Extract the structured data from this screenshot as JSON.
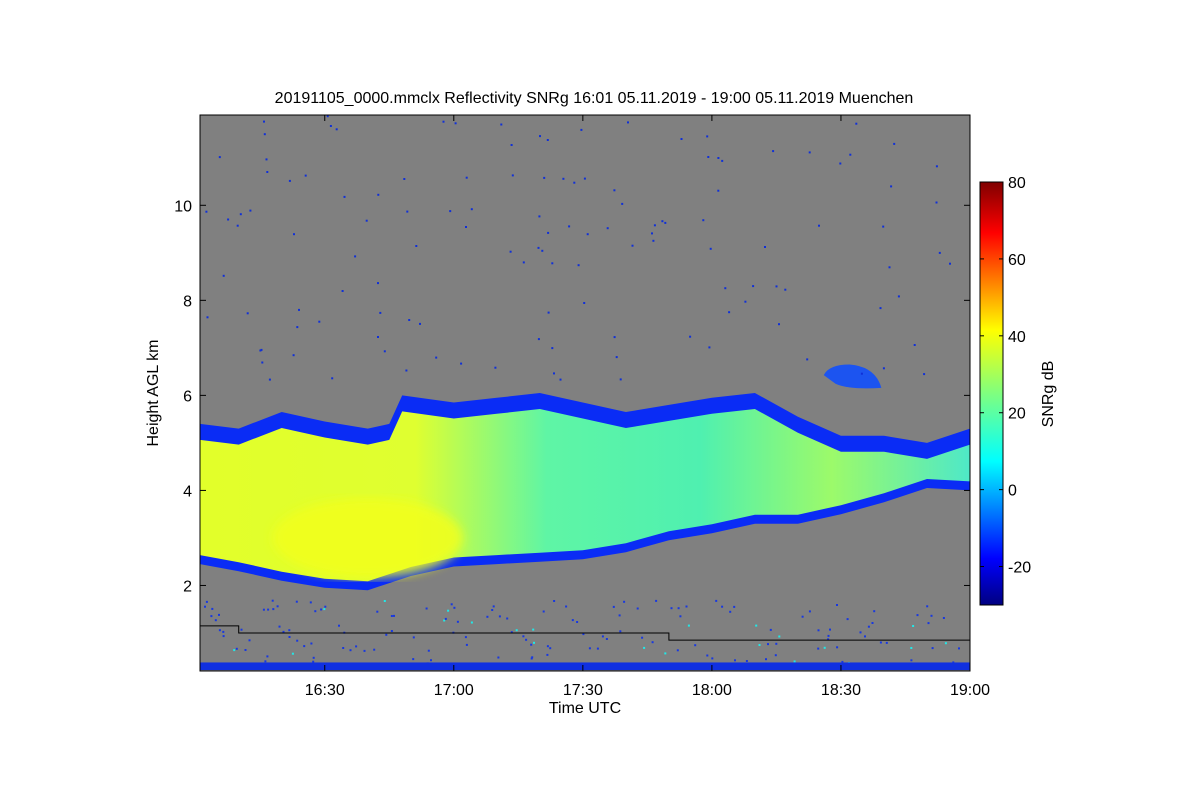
{
  "chart_data": {
    "type": "heatmap",
    "title": "20191105_0000.mmclx Reflectivity SNRg   16:01 05.11.2019 - 19:00 05.11.2019 Muenchen",
    "xlabel": "Time UTC",
    "ylabel": "Height AGL km",
    "colorbar_label": "SNRg dB",
    "x_range_minutes_utc": [
      961,
      1140
    ],
    "y_range_km": [
      0.2,
      11.9
    ],
    "x_ticks": [
      {
        "minutes": 990,
        "label": "16:30"
      },
      {
        "minutes": 1020,
        "label": "17:00"
      },
      {
        "minutes": 1050,
        "label": "17:30"
      },
      {
        "minutes": 1080,
        "label": "18:00"
      },
      {
        "minutes": 1110,
        "label": "18:30"
      },
      {
        "minutes": 1140,
        "label": "19:00"
      }
    ],
    "y_ticks": [
      {
        "value": 2,
        "label": "2"
      },
      {
        "value": 4,
        "label": "4"
      },
      {
        "value": 6,
        "label": "6"
      },
      {
        "value": 8,
        "label": "8"
      },
      {
        "value": 10,
        "label": "10"
      }
    ],
    "colorbar_range": [
      -30,
      80
    ],
    "colorbar_ticks": [
      {
        "value": -20,
        "label": "-20"
      },
      {
        "value": 0,
        "label": "0"
      },
      {
        "value": 20,
        "label": "20"
      },
      {
        "value": 40,
        "label": "40"
      },
      {
        "value": 60,
        "label": "60"
      },
      {
        "value": 80,
        "label": "80"
      }
    ],
    "colormap": "jet",
    "background_color": "#808080",
    "cloud_top_km": [
      [
        961,
        5.4
      ],
      [
        970,
        5.3
      ],
      [
        980,
        5.65
      ],
      [
        990,
        5.45
      ],
      [
        1000,
        5.3
      ],
      [
        1005,
        5.4
      ],
      [
        1008,
        6.0
      ],
      [
        1020,
        5.85
      ],
      [
        1030,
        5.95
      ],
      [
        1040,
        6.05
      ],
      [
        1050,
        5.85
      ],
      [
        1060,
        5.65
      ],
      [
        1070,
        5.8
      ],
      [
        1080,
        5.95
      ],
      [
        1090,
        6.05
      ],
      [
        1100,
        5.55
      ],
      [
        1110,
        5.15
      ],
      [
        1120,
        5.15
      ],
      [
        1130,
        5.0
      ],
      [
        1140,
        5.3
      ]
    ],
    "cloud_base_km": [
      [
        961,
        2.45
      ],
      [
        970,
        2.3
      ],
      [
        980,
        2.1
      ],
      [
        990,
        1.95
      ],
      [
        1000,
        1.9
      ],
      [
        1010,
        2.2
      ],
      [
        1020,
        2.4
      ],
      [
        1030,
        2.45
      ],
      [
        1040,
        2.5
      ],
      [
        1050,
        2.55
      ],
      [
        1060,
        2.7
      ],
      [
        1070,
        2.95
      ],
      [
        1080,
        3.1
      ],
      [
        1090,
        3.3
      ],
      [
        1100,
        3.3
      ],
      [
        1110,
        3.5
      ],
      [
        1120,
        3.75
      ],
      [
        1130,
        4.05
      ],
      [
        1140,
        4.0
      ]
    ],
    "max_snr_core": {
      "time_minutes": 1000,
      "height_km": 3.0,
      "snr_db": 38
    },
    "detached_cloud": {
      "time_minutes": [
        1106,
        1118
      ],
      "height_km": [
        6.2,
        6.65
      ]
    },
    "reference_line_km": [
      [
        961,
        1.15
      ],
      [
        970,
        1.15
      ],
      [
        970,
        1.0
      ],
      [
        1070,
        1.0
      ],
      [
        1070,
        0.85
      ],
      [
        1140,
        0.85
      ]
    ]
  }
}
